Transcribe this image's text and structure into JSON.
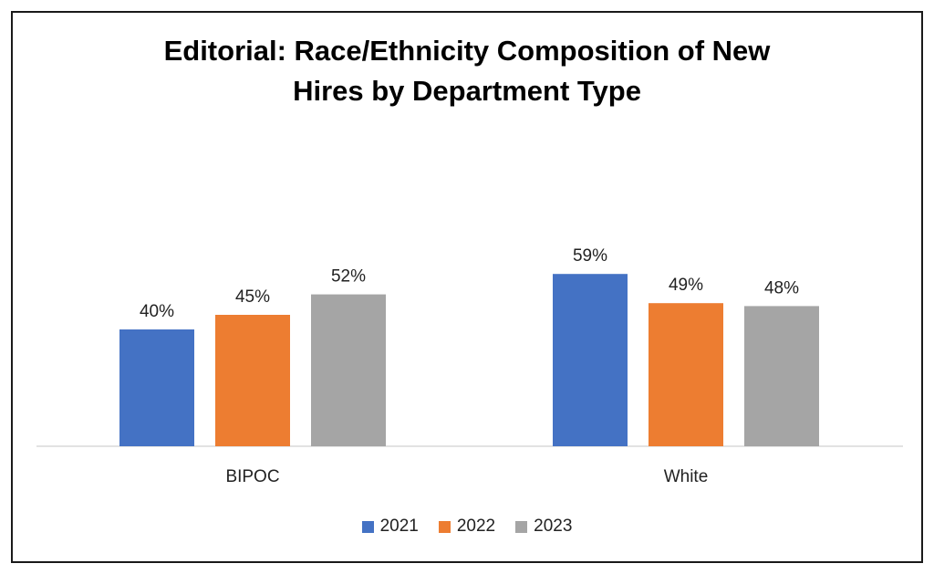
{
  "chart_data": {
    "type": "bar",
    "title_lines": [
      "Editorial: Race/Ethnicity Composition of New",
      "Hires by Department Type"
    ],
    "categories": [
      "BIPOC",
      "White"
    ],
    "series": [
      {
        "name": "2021",
        "color": "#4472C4",
        "values": [
          40,
          59
        ],
        "labels": [
          "40%",
          "59%"
        ]
      },
      {
        "name": "2022",
        "color": "#ED7D31",
        "values": [
          45,
          49
        ],
        "labels": [
          "45%",
          "49%"
        ]
      },
      {
        "name": "2023",
        "color": "#A5A5A5",
        "values": [
          52,
          48
        ],
        "labels": [
          "52%",
          "48%"
        ]
      }
    ],
    "xlabel": "",
    "ylabel": "",
    "y_axis_shown": false,
    "grid": false,
    "legend_position": "bottom"
  }
}
